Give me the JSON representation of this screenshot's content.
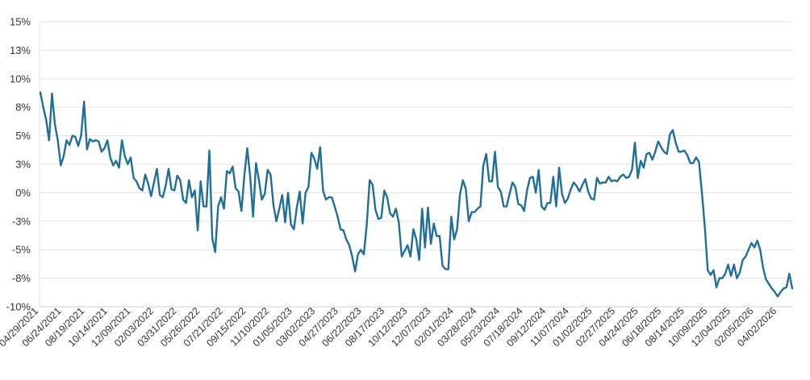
{
  "chart_data": {
    "type": "line",
    "title": "",
    "xlabel": "",
    "ylabel": "",
    "ylim": [
      -10,
      15
    ],
    "grid": true,
    "legend": "none",
    "yticks": [
      {
        "value": 15,
        "label": "15%"
      },
      {
        "value": 12.5,
        "label": "13%"
      },
      {
        "value": 10,
        "label": "10%"
      },
      {
        "value": 7.5,
        "label": "8%"
      },
      {
        "value": 5,
        "label": "5%"
      },
      {
        "value": 2.5,
        "label": "3%"
      },
      {
        "value": 0,
        "label": "0%"
      },
      {
        "value": -2.5,
        "label": "-3%"
      },
      {
        "value": -5,
        "label": "-5%"
      },
      {
        "value": -7.5,
        "label": "-8%"
      },
      {
        "value": -10,
        "label": "-10%"
      }
    ],
    "xticks": [
      "04/29/2021",
      "06/24/2021",
      "08/19/2021",
      "10/14/2021",
      "12/09/2021",
      "02/03/2022",
      "03/31/2022",
      "05/26/2022",
      "07/21/2022",
      "09/15/2022",
      "11/10/2022",
      "01/05/2023",
      "03/02/2023",
      "04/27/2023",
      "06/22/2023",
      "08/17/2023",
      "10/12/2023",
      "12/07/2023",
      "02/01/2024",
      "03/28/2024",
      "05/23/2024",
      "07/18/2024",
      "09/12/2024",
      "11/07/2024",
      "01/02/2025",
      "02/27/2025",
      "04/24/2025",
      "06/18/2025",
      "08/14/2025",
      "10/09/2025",
      "12/04/2025",
      "02/05/2026",
      "04/02/2026"
    ],
    "series": [
      {
        "color": "#1f6f97",
        "values": [
          8.8,
          7.5,
          6.4,
          4.6,
          8.7,
          6.0,
          4.6,
          2.4,
          3.2,
          4.6,
          4.2,
          5.0,
          4.9,
          4.1,
          5.0,
          8.0,
          3.8,
          4.7,
          4.5,
          4.6,
          4.5,
          3.6,
          3.9,
          4.6,
          3.1,
          2.4,
          2.8,
          2.2,
          4.6,
          3.2,
          2.5,
          3.1,
          1.3,
          1.0,
          0.4,
          0.2,
          1.6,
          0.8,
          -0.3,
          0.9,
          2.1,
          -0.2,
          -0.4,
          0.6,
          2.1,
          0.3,
          0.2,
          1.5,
          1.1,
          -0.6,
          -0.9,
          1.1,
          -0.4,
          0.2,
          -3.3,
          1.0,
          -1.2,
          -1.2,
          3.7,
          -4.0,
          -5.2,
          -1.2,
          -0.4,
          -1.4,
          1.9,
          1.7,
          2.3,
          0.4,
          0.1,
          -1.6,
          1.5,
          3.9,
          1.4,
          -2.1,
          2.6,
          1.1,
          -0.6,
          -0.1,
          2.0,
          1.6,
          -1.1,
          -2.5,
          -1.4,
          -0.2,
          -2.6,
          0.0,
          -2.8,
          -3.2,
          -1.3,
          0.1,
          -2.7,
          0.0,
          0.5,
          3.5,
          3.0,
          2.1,
          4.0,
          0.2,
          -0.6,
          -0.4,
          -0.4,
          -1.2,
          -2.1,
          -3.2,
          -3.3,
          -4.1,
          -4.6,
          -5.6,
          -6.9,
          -5.4,
          -5.0,
          -5.4,
          -2.8,
          1.1,
          0.7,
          -1.5,
          -2.3,
          -2.2,
          0.2,
          -0.4,
          -1.8,
          -2.1,
          -1.4,
          -2.6,
          -5.6,
          -5.1,
          -4.6,
          -5.6,
          -3.2,
          -4.1,
          -5.9,
          -1.4,
          -4.8,
          -1.3,
          -4.5,
          -2.7,
          -3.8,
          -3.8,
          -6.4,
          -6.7,
          -6.7,
          -2.1,
          -4.1,
          -3.2,
          -0.1,
          1.1,
          0.3,
          -2.5,
          -1.7,
          -1.7,
          -1.4,
          -1.2,
          2.4,
          3.4,
          1.0,
          1.0,
          3.6,
          0.5,
          0.1,
          -1.2,
          -1.2,
          -0.1,
          0.9,
          0.5,
          -1.0,
          -1.1,
          -1.6,
          0.2,
          1.3,
          1.4,
          0.0,
          2.0,
          -1.2,
          -1.5,
          -0.9,
          -0.9,
          1.4,
          -1.2,
          2.2,
          -0.1,
          -0.9,
          -0.5,
          0.3,
          0.9,
          0.6,
          0.1,
          0.7,
          1.2,
          0.1,
          -0.5,
          -0.6,
          1.3,
          0.8,
          0.9,
          0.9,
          1.4,
          1.0,
          1.1,
          1.0,
          1.4,
          1.6,
          1.3,
          1.4,
          2.0,
          4.4,
          1.3,
          2.8,
          2.2,
          3.4,
          3.5,
          2.9,
          3.6,
          4.5,
          4.0,
          3.6,
          3.4,
          5.1,
          5.5,
          4.4,
          3.6,
          3.6,
          3.7,
          3.3,
          2.6,
          2.6,
          3.1,
          2.7,
          0.0,
          -3.0,
          -6.8,
          -7.2,
          -6.8,
          -8.3,
          -7.5,
          -7.5,
          -7.1,
          -6.3,
          -7.3,
          -6.3,
          -7.5,
          -7.0,
          -5.9,
          -5.6,
          -5.0,
          -4.4,
          -4.8,
          -4.2,
          -5.0,
          -6.6,
          -7.6,
          -8.0,
          -8.4,
          -8.7,
          -9.1,
          -8.7,
          -8.4,
          -8.3,
          -7.1,
          -8.4
        ]
      }
    ]
  }
}
